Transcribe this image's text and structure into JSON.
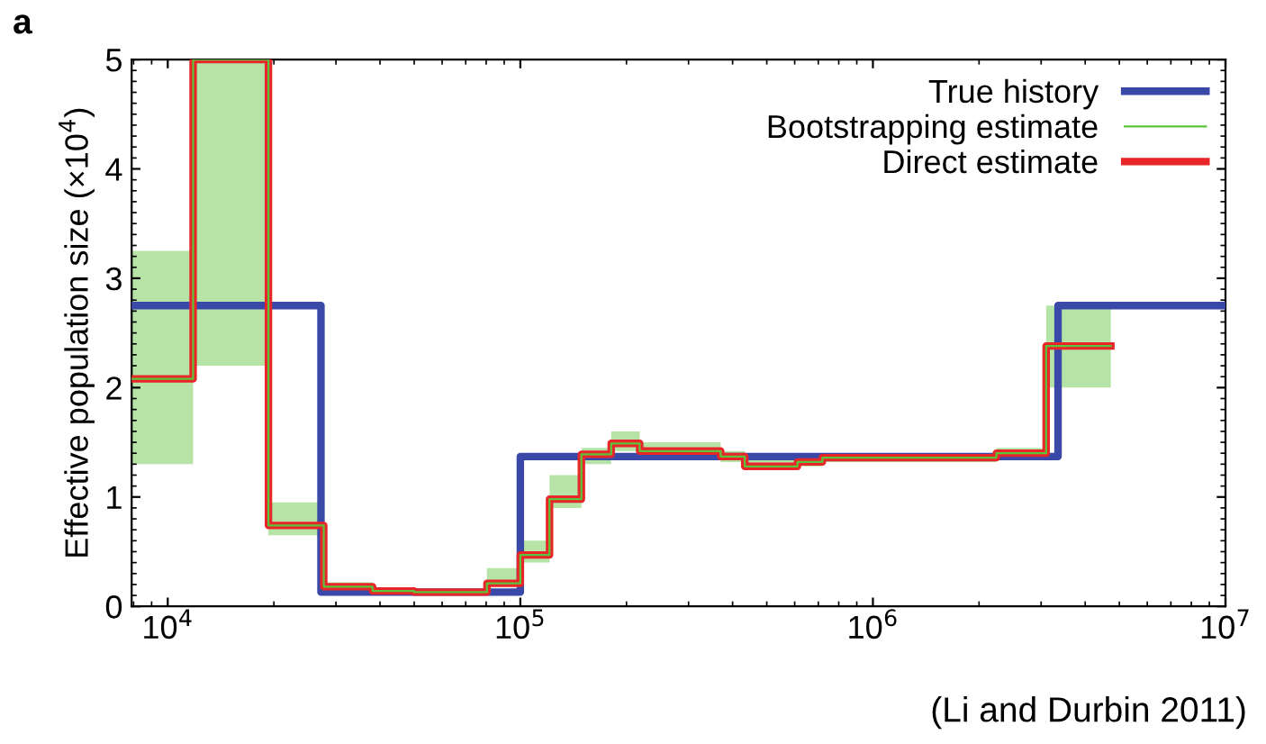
{
  "chart_data": {
    "type": "step",
    "ylabel": "Effective population size (×10$^{4}$)",
    "annotations": [
      "a",
      "(Li and Durbin 2011)"
    ],
    "log": "x",
    "xlim": [
      7900,
      10000000
    ],
    "xticks": [
      {
        "value": 10000,
        "label": "10$^{4}$"
      },
      {
        "value": 100000,
        "label": "10$^{5}$"
      },
      {
        "value": 1000000,
        "label": "10$^{6}$"
      },
      {
        "value": 10000000,
        "label": "10$^{7}$"
      }
    ],
    "ylim": [
      0,
      5
    ],
    "yticks": [
      0,
      1,
      2,
      3,
      4,
      5
    ],
    "grid": false,
    "legend": "top right",
    "series": [
      {
        "name": "True history",
        "color": "#3a48a8",
        "x": [
          7900,
          27200,
          100000,
          3350000,
          10000000
        ],
        "values": [
          2.75,
          0.13,
          1.37,
          2.75,
          2.75
        ]
      },
      {
        "name": "Bootstrapping estimate",
        "color": "#5cc43a",
        "x": [
          7900,
          11800,
          19300,
          27700,
          38100,
          50000,
          80400,
          100000,
          121000,
          149000,
          181000,
          218000,
          370000,
          433000,
          611000,
          719000,
          2240000,
          3100000,
          4730000
        ],
        "values": [
          2.08,
          5,
          0.74,
          0.18,
          0.14,
          0.13,
          0.21,
          0.47,
          0.98,
          1.39,
          1.49,
          1.42,
          1.37,
          1.28,
          1.32,
          1.36,
          1.4,
          2.38,
          2.38
        ],
        "lower": [
          1.3,
          2.2,
          0.65,
          0.13,
          0.12,
          0.11,
          0.2,
          0.4,
          0.9,
          1.3,
          1.42,
          1.35,
          1.32,
          1.25,
          1.28,
          1.32,
          1.35,
          2.0,
          2.0
        ],
        "upper": [
          3.25,
          5,
          0.95,
          0.22,
          0.17,
          0.16,
          0.35,
          0.6,
          1.2,
          1.45,
          1.6,
          1.5,
          1.42,
          1.35,
          1.38,
          1.4,
          1.45,
          2.75,
          2.75
        ]
      },
      {
        "name": "Direct estimate",
        "color": "#e8262a",
        "x": [
          7900,
          11800,
          19300,
          27700,
          38100,
          50000,
          80400,
          100000,
          121000,
          149000,
          181000,
          218000,
          370000,
          433000,
          611000,
          719000,
          2240000,
          3100000,
          4730000
        ],
        "values": [
          2.08,
          5,
          0.74,
          0.18,
          0.14,
          0.13,
          0.21,
          0.47,
          0.98,
          1.39,
          1.49,
          1.42,
          1.37,
          1.28,
          1.32,
          1.36,
          1.4,
          2.38,
          2.38
        ]
      }
    ]
  }
}
